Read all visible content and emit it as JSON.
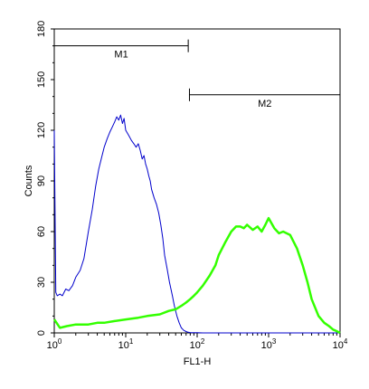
{
  "chart_data": {
    "type": "line",
    "title": "",
    "xlabel": "FL1-H",
    "ylabel": "Counts",
    "x_scale": "log",
    "xlim": [
      1,
      10000
    ],
    "ylim": [
      0,
      180
    ],
    "x_tick_values": [
      1,
      10,
      100,
      1000,
      10000
    ],
    "x_tick_bases": [
      "10",
      "10",
      "10",
      "10",
      "10"
    ],
    "x_tick_exponents": [
      "0",
      "1",
      "2",
      "3",
      "4"
    ],
    "y_tick_values": [
      0,
      30,
      60,
      90,
      120,
      150,
      180
    ],
    "y_tick_labels": [
      "0",
      "30",
      "60",
      "90",
      "120",
      "150",
      "180"
    ],
    "grid": false,
    "legend": "none",
    "markers": [
      {
        "label": "M1",
        "x_range": [
          1,
          75
        ],
        "y": 170
      },
      {
        "label": "M2",
        "x_range": [
          78,
          10000
        ],
        "y": 141
      }
    ],
    "series": [
      {
        "color": "#0000cc",
        "x": [
          1,
          1.05,
          1.1,
          1.2,
          1.3,
          1.45,
          1.6,
          1.8,
          2.0,
          2.3,
          2.6,
          3.0,
          3.4,
          3.8,
          4.2,
          4.6,
          5.0,
          5.5,
          6.0,
          6.5,
          7.0,
          7.5,
          8.0,
          8.5,
          9.0,
          9.5,
          10,
          11,
          12,
          13,
          14,
          15,
          16,
          17,
          18,
          19,
          20,
          21,
          22,
          23,
          25,
          27,
          29,
          31,
          33,
          35,
          38,
          41,
          45,
          48,
          52,
          56,
          60,
          65,
          70,
          75,
          80,
          90,
          100,
          120,
          150,
          200,
          300,
          1000,
          10000
        ],
        "y": [
          120,
          24,
          22,
          23,
          22,
          26,
          25,
          28,
          33,
          37,
          44,
          60,
          73,
          87,
          97,
          104,
          110,
          115,
          119,
          122,
          125,
          128,
          126,
          129,
          124,
          127,
          120,
          117,
          114,
          112,
          110,
          112,
          108,
          103,
          105,
          100,
          97,
          93,
          90,
          85,
          80,
          76,
          71,
          64,
          56,
          46,
          38,
          30,
          22,
          16,
          10,
          6,
          3,
          1.5,
          0.8,
          0.4,
          0.2,
          0.1,
          0.1,
          0,
          0,
          0,
          0,
          0,
          0
        ]
      },
      {
        "color": "#33ff00",
        "x": [
          1,
          1.2,
          1.5,
          2,
          3,
          4,
          5,
          7,
          10,
          15,
          20,
          30,
          40,
          50,
          60,
          70,
          80,
          90,
          100,
          120,
          150,
          180,
          200,
          250,
          300,
          350,
          400,
          450,
          500,
          600,
          700,
          800,
          900,
          1000,
          1200,
          1400,
          1600,
          2000,
          2500,
          3000,
          3500,
          4000,
          5000,
          6000,
          7000,
          8000,
          9000,
          10000
        ],
        "y": [
          8,
          3,
          4,
          5,
          5,
          6,
          6,
          7,
          8,
          9,
          10,
          11,
          13,
          14,
          16,
          18,
          20,
          22,
          24,
          28,
          34,
          40,
          46,
          54,
          60,
          63,
          63,
          62,
          64,
          61,
          63,
          60,
          64,
          68,
          62,
          59,
          60,
          58,
          50,
          40,
          30,
          20,
          10,
          6,
          4,
          2,
          1,
          0
        ]
      }
    ]
  }
}
